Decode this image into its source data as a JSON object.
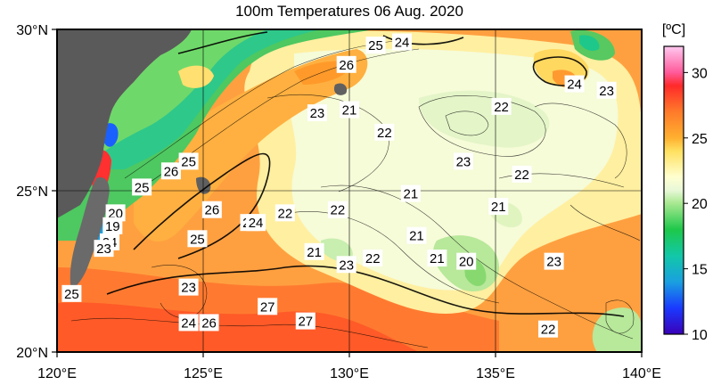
{
  "title": "100m Temperatures  06 Aug. 2020",
  "map": {
    "lat_labels": [
      "30°N",
      "25°N",
      "20°N"
    ],
    "lon_labels": [
      "120°E",
      "125°E",
      "130°E",
      "135°E",
      "140°E"
    ],
    "extent": {
      "lon": [
        120,
        140
      ],
      "lat": [
        20,
        30
      ]
    }
  },
  "contour_labels": [
    {
      "text": "25",
      "lon": 130.9,
      "lat": 29.5
    },
    {
      "text": "24",
      "lon": 131.8,
      "lat": 29.6
    },
    {
      "text": "26",
      "lon": 129.9,
      "lat": 28.9
    },
    {
      "text": "24",
      "lon": 137.7,
      "lat": 28.3
    },
    {
      "text": "23",
      "lon": 138.8,
      "lat": 28.1
    },
    {
      "text": "22",
      "lon": 135.2,
      "lat": 27.6
    },
    {
      "text": "23",
      "lon": 128.9,
      "lat": 27.4
    },
    {
      "text": "21",
      "lon": 130.0,
      "lat": 27.5
    },
    {
      "text": "22",
      "lon": 131.2,
      "lat": 26.8
    },
    {
      "text": "25",
      "lon": 124.5,
      "lat": 25.9
    },
    {
      "text": "26",
      "lon": 123.9,
      "lat": 25.6
    },
    {
      "text": "23",
      "lon": 133.9,
      "lat": 25.9
    },
    {
      "text": "22",
      "lon": 135.9,
      "lat": 25.5
    },
    {
      "text": "25",
      "lon": 122.9,
      "lat": 25.1
    },
    {
      "text": "21",
      "lon": 132.1,
      "lat": 24.9
    },
    {
      "text": "26",
      "lon": 125.3,
      "lat": 24.4
    },
    {
      "text": "21",
      "lon": 135.1,
      "lat": 24.5
    },
    {
      "text": "20",
      "lon": 122.0,
      "lat": 24.3
    },
    {
      "text": "22",
      "lon": 127.8,
      "lat": 24.3
    },
    {
      "text": "22",
      "lon": 129.6,
      "lat": 24.4
    },
    {
      "text": "19",
      "lon": 121.9,
      "lat": 23.9
    },
    {
      "text": "25",
      "lon": 126.6,
      "lat": 24.0
    },
    {
      "text": "24",
      "lon": 126.8,
      "lat": 24.0
    },
    {
      "text": "21",
      "lon": 132.3,
      "lat": 23.6
    },
    {
      "text": "24",
      "lon": 121.8,
      "lat": 23.4
    },
    {
      "text": "25",
      "lon": 124.8,
      "lat": 23.5
    },
    {
      "text": "23",
      "lon": 121.6,
      "lat": 23.2
    },
    {
      "text": "21",
      "lon": 128.8,
      "lat": 23.1
    },
    {
      "text": "21",
      "lon": 133.0,
      "lat": 22.9
    },
    {
      "text": "20",
      "lon": 134.0,
      "lat": 22.8
    },
    {
      "text": "23",
      "lon": 129.9,
      "lat": 22.7
    },
    {
      "text": "22",
      "lon": 130.8,
      "lat": 22.9
    },
    {
      "text": "23",
      "lon": 137.0,
      "lat": 22.8
    },
    {
      "text": "25",
      "lon": 120.5,
      "lat": 21.8
    },
    {
      "text": "23",
      "lon": 124.5,
      "lat": 22.0
    },
    {
      "text": "27",
      "lon": 127.2,
      "lat": 21.4
    },
    {
      "text": "24",
      "lon": 124.5,
      "lat": 20.9
    },
    {
      "text": "26",
      "lon": 125.2,
      "lat": 20.9
    },
    {
      "text": "27",
      "lon": 128.5,
      "lat": 20.95
    },
    {
      "text": "22",
      "lon": 136.8,
      "lat": 20.7
    }
  ],
  "colorbar": {
    "unit": "[ºC]",
    "ticks": [
      "30",
      "25",
      "20",
      "15",
      "10"
    ],
    "range": [
      10,
      32
    ],
    "stops": [
      {
        "v": 10,
        "c": "#3a00b8"
      },
      {
        "v": 12,
        "c": "#1a3aff"
      },
      {
        "v": 14,
        "c": "#1aa0e0"
      },
      {
        "v": 16,
        "c": "#12c8a8"
      },
      {
        "v": 18,
        "c": "#1ec84a"
      },
      {
        "v": 20,
        "c": "#a8e890"
      },
      {
        "v": 21,
        "c": "#e8f8d8"
      },
      {
        "v": 22,
        "c": "#ffffd0"
      },
      {
        "v": 24,
        "c": "#ffe060"
      },
      {
        "v": 25,
        "c": "#ffb030"
      },
      {
        "v": 27,
        "c": "#ff7a2a"
      },
      {
        "v": 29,
        "c": "#ff2a2a"
      },
      {
        "v": 30,
        "c": "#ff5a9a"
      },
      {
        "v": 32,
        "c": "#ffc8f0"
      }
    ]
  }
}
